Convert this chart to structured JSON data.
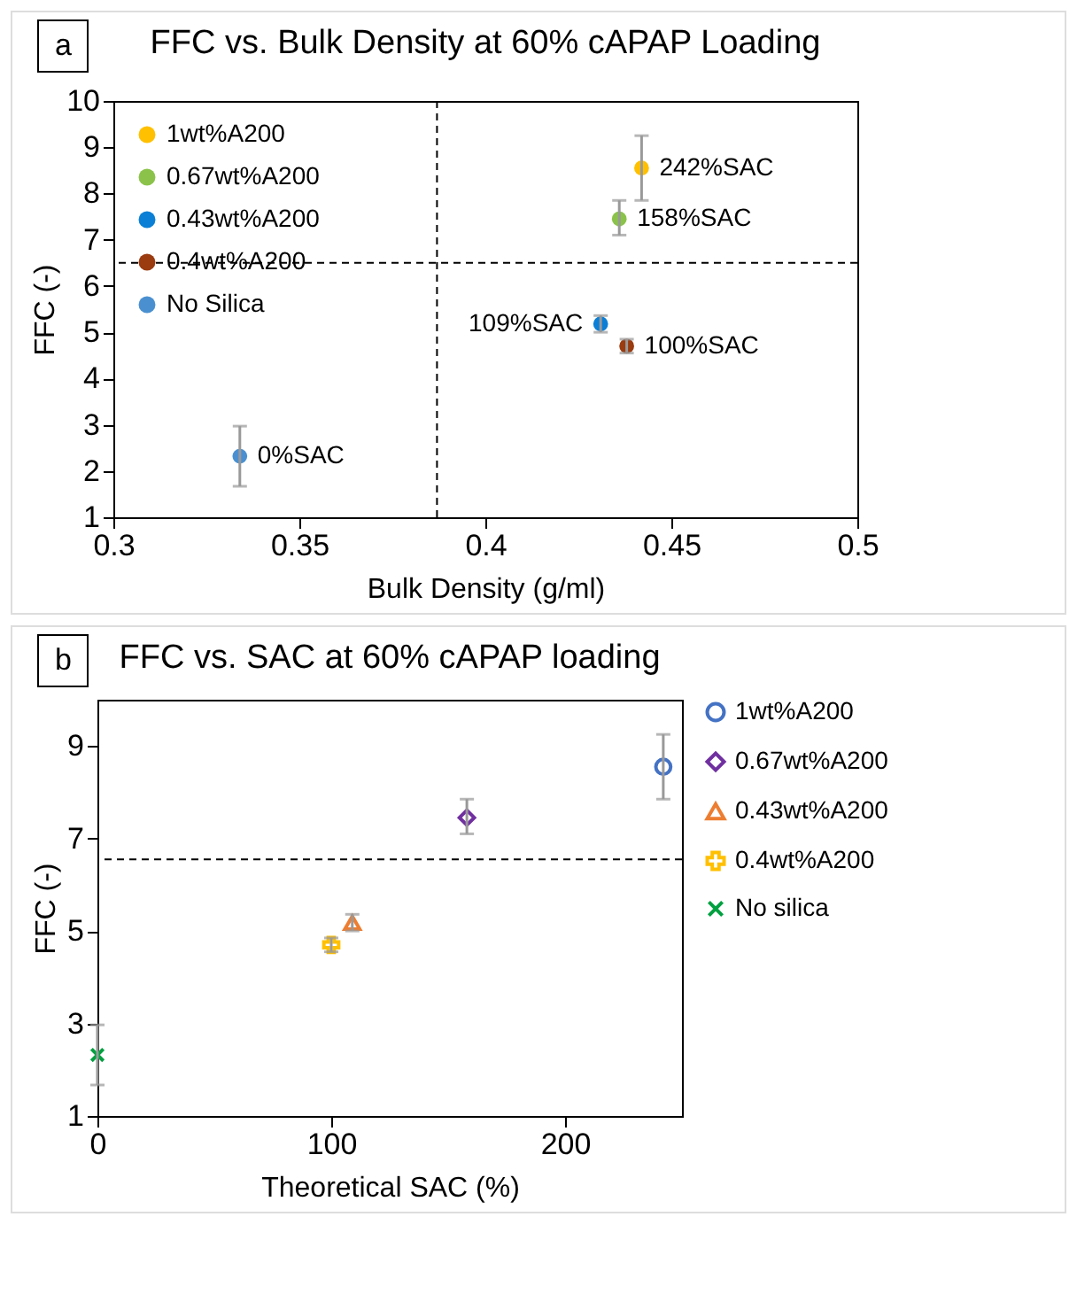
{
  "chart_data": [
    {
      "type": "scatter",
      "title": "FFC vs. Bulk Density at 60% cAPAP Loading",
      "xlabel": "Bulk Density (g/ml)",
      "ylabel": "FFC (-)",
      "xlim": [
        0.3,
        0.5
      ],
      "xticks": [
        0.3,
        0.35,
        0.4,
        0.45,
        0.5
      ],
      "ylim": [
        1,
        10
      ],
      "yticks": [
        1,
        2,
        3,
        4,
        5,
        6,
        7,
        8,
        9,
        10
      ],
      "legend": "top left",
      "marker": "circle",
      "grid": false,
      "series": [
        {
          "name": "1wt%A200",
          "color": "#ffc000",
          "x": [
            0.442
          ],
          "values": [
            8.55
          ],
          "errors": [
            [
              7.85,
              9.25
            ]
          ]
        },
        {
          "name": "0.67wt%A200",
          "color": "#8bc34a",
          "x": [
            0.436
          ],
          "values": [
            7.45
          ],
          "errors": [
            [
              7.1,
              7.85
            ]
          ]
        },
        {
          "name": "0.43wt%A200",
          "color": "#0b7fd6",
          "x": [
            0.431
          ],
          "values": [
            5.18
          ],
          "errors": [
            [
              5.0,
              5.36
            ]
          ]
        },
        {
          "name": "0.4wt%A200",
          "color": "#9a3b10",
          "x": [
            0.438
          ],
          "values": [
            4.7
          ],
          "errors": [
            [
              4.55,
              4.85
            ]
          ]
        },
        {
          "name": "No Silica",
          "color": "#4a90d0",
          "x": [
            0.334
          ],
          "values": [
            2.32
          ],
          "errors": [
            [
              1.67,
              2.97
            ]
          ]
        }
      ],
      "ref_lines": [
        {
          "axis": "x",
          "value": 0.387,
          "line_style": "dashed"
        },
        {
          "axis": "y",
          "value": 6.5,
          "line_style": "dashed"
        }
      ],
      "annotations": [
        "a",
        {
          "text": "242%SAC",
          "x": 0.442,
          "y": 8.55
        },
        {
          "text": "158%SAC",
          "x": 0.436,
          "y": 7.45
        },
        {
          "text": "109%SAC",
          "x": 0.431,
          "y": 5.18
        },
        {
          "text": "100%SAC",
          "x": 0.438,
          "y": 4.7
        },
        {
          "text": "0%SAC",
          "x": 0.334,
          "y": 2.32
        }
      ]
    },
    {
      "type": "scatter",
      "title": "FFC vs. SAC at 60% cAPAP loading",
      "xlabel": "Theoretical SAC (%)",
      "ylabel": "FFC (-)",
      "xlim": [
        0,
        250
      ],
      "xticks": [
        0,
        100,
        200
      ],
      "ylim": [
        1,
        10
      ],
      "yticks": [
        1,
        3,
        5,
        7,
        9
      ],
      "legend": "right",
      "grid": false,
      "series": [
        {
          "name": "1wt%A200",
          "color": "#4472c4",
          "marker": "circle",
          "x": [
            242
          ],
          "values": [
            8.55
          ],
          "errors": [
            [
              7.85,
              9.25
            ]
          ]
        },
        {
          "name": "0.67wt%A200",
          "color": "#7030a0",
          "marker": "diamond",
          "x": [
            158
          ],
          "values": [
            7.45
          ],
          "errors": [
            [
              7.1,
              7.85
            ]
          ]
        },
        {
          "name": "0.43wt%A200",
          "color": "#ed7d31",
          "marker": "triangle",
          "x": [
            109
          ],
          "values": [
            5.18
          ],
          "errors": [
            [
              5.0,
              5.36
            ]
          ]
        },
        {
          "name": "0.4wt%A200",
          "color": "#ffc000",
          "marker": "cross",
          "x": [
            100
          ],
          "values": [
            4.7
          ],
          "errors": [
            [
              4.55,
              4.85
            ]
          ]
        },
        {
          "name": "No silica",
          "color": "#00a040",
          "marker": "x",
          "x": [
            0
          ],
          "values": [
            2.32
          ],
          "errors": [
            [
              1.67,
              2.97
            ]
          ]
        }
      ],
      "ref_lines": [
        {
          "axis": "y",
          "value": 6.55,
          "line_style": "dashed"
        }
      ],
      "annotations": [
        "b"
      ]
    }
  ]
}
